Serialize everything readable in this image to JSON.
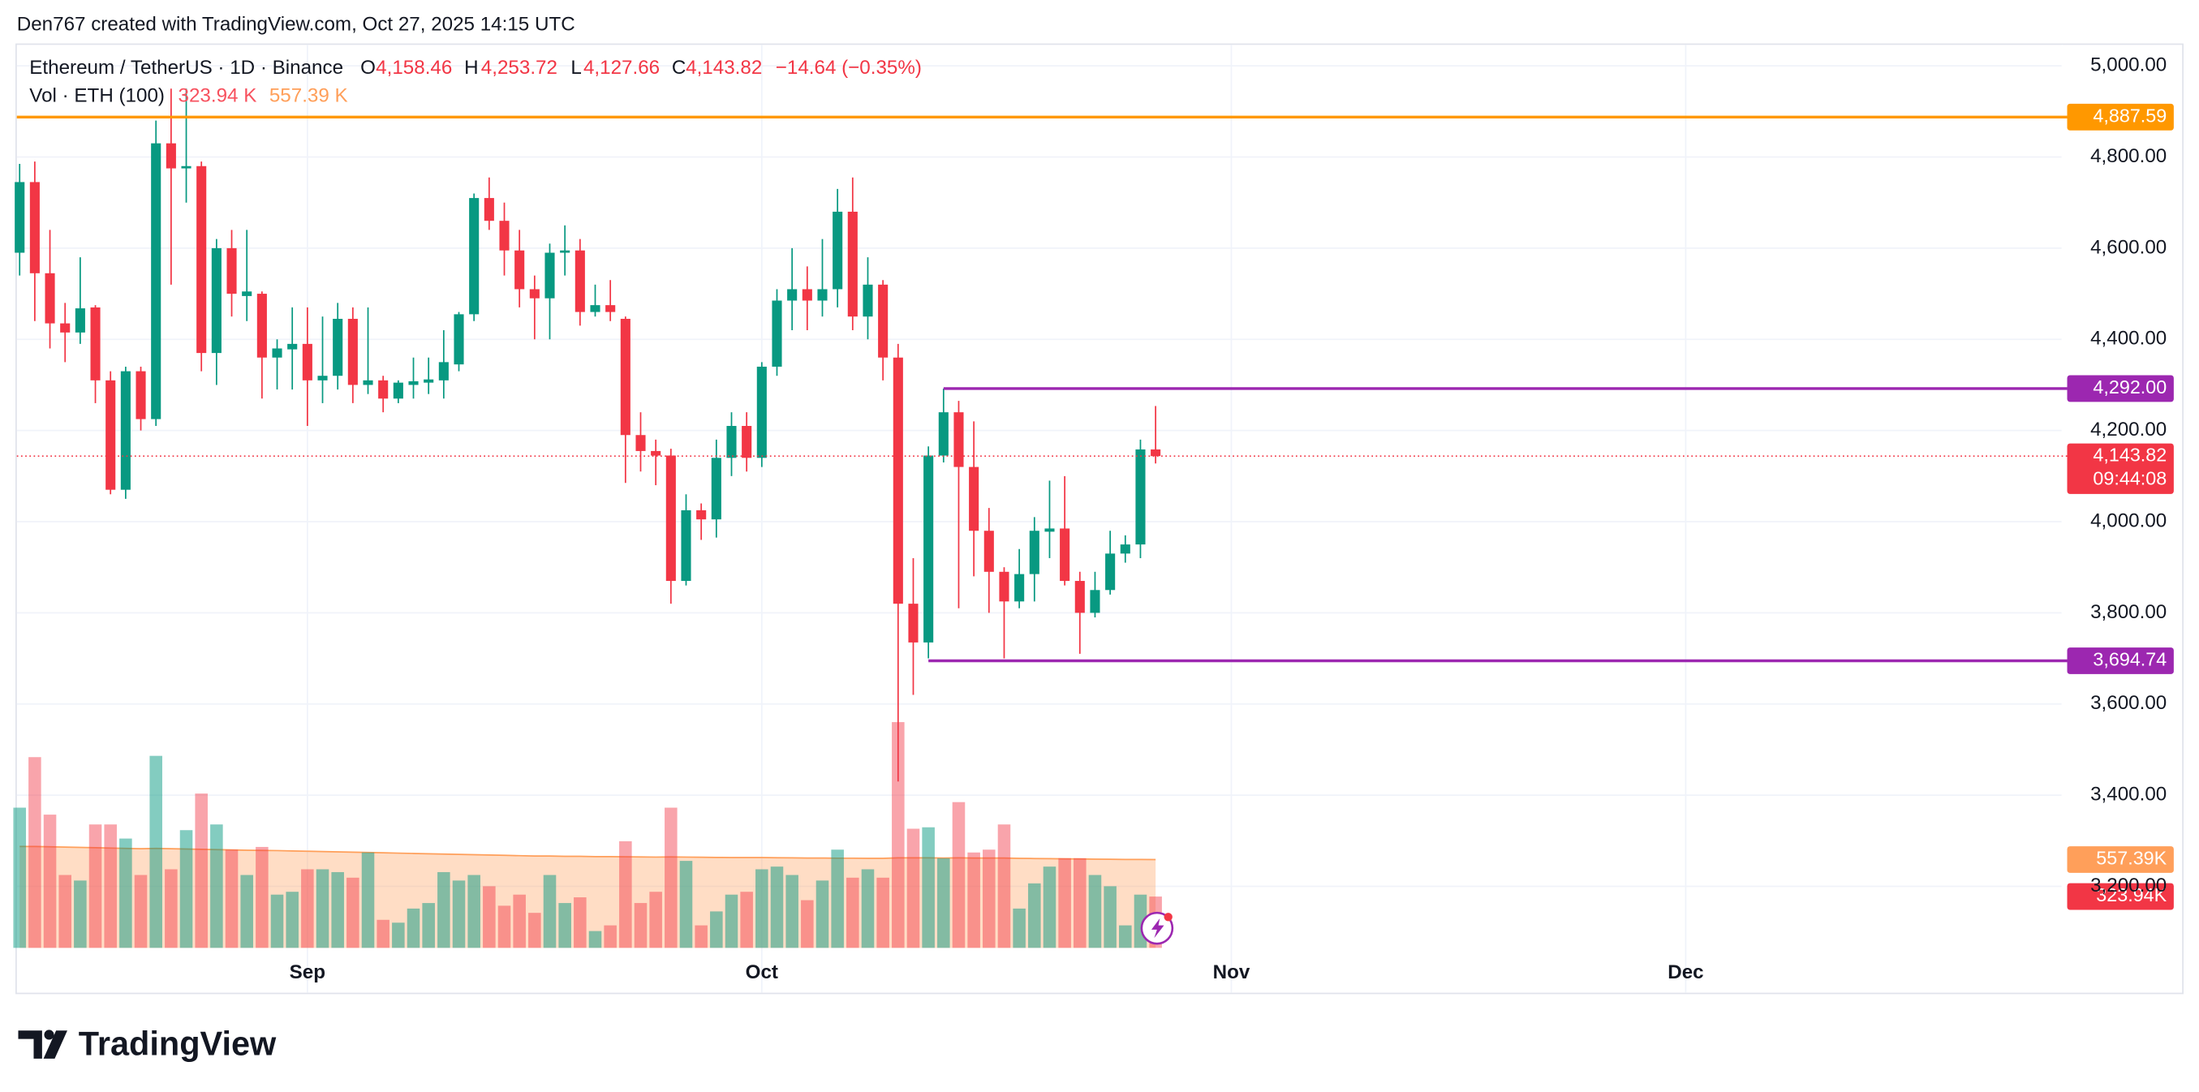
{
  "header": "Den767 created with TradingView.com, Oct 27, 2025 14:15 UTC",
  "brand": "TradingView",
  "chart_data": {
    "type": "candlestick",
    "legend": {
      "symbol": "Ethereum / TetherUS · 1D · Binance",
      "o": "O",
      "open": "4,158.46",
      "h": "H",
      "high": "4,253.72",
      "l": "L",
      "low": "4,127.66",
      "c": "C",
      "close": "4,143.82",
      "change": "−14.64 (−0.35%)",
      "vol": "Vol · ETH (100)",
      "vol_value": "323.94 K",
      "vol_ma": "557.39 K"
    },
    "categories": [
      null,
      null,
      null,
      null,
      null,
      null,
      null,
      null,
      null,
      null,
      null,
      null,
      null,
      null,
      null,
      null,
      null,
      null,
      null,
      "Sep",
      null,
      null,
      null,
      null,
      null,
      null,
      null,
      null,
      null,
      null,
      null,
      null,
      null,
      null,
      null,
      null,
      null,
      null,
      null,
      null,
      null,
      null,
      null,
      null,
      null,
      null,
      null,
      null,
      null,
      "Oct",
      null,
      null,
      null,
      null,
      null,
      null,
      null,
      null,
      null,
      null,
      null,
      null,
      null,
      null,
      null,
      null,
      null,
      null,
      null,
      null,
      null,
      null,
      null,
      null,
      null,
      null,
      null,
      null,
      null,
      null,
      "Nov",
      null,
      null,
      null,
      null,
      null,
      null,
      null,
      null,
      null,
      null,
      null,
      null,
      null,
      null,
      null,
      null,
      null,
      null,
      null,
      null,
      null,
      null,
      null,
      null,
      null,
      null,
      null,
      null,
      null,
      "Dec",
      null,
      null,
      null,
      null,
      null,
      null,
      null,
      null,
      null,
      null,
      null,
      null,
      null,
      null,
      null,
      null,
      null,
      null,
      null,
      null,
      null,
      null,
      null,
      null
    ],
    "open": [
      4590,
      4745,
      4545,
      4435,
      4415,
      4470,
      4310,
      4070,
      4330,
      4225,
      4830,
      4775,
      4780,
      4370,
      4600,
      4495,
      4500,
      4360,
      4378,
      4390,
      4310,
      4320,
      4445,
      4300,
      4310,
      4270,
      4300,
      4305,
      4310,
      4345,
      4455,
      4710,
      4660,
      4595,
      4510,
      4490,
      4590,
      4595,
      4460,
      4475,
      4445,
      4190,
      4155,
      4145,
      3870,
      4025,
      4005,
      4140,
      4210,
      4140,
      4340,
      4485,
      4510,
      4485,
      4510,
      4680,
      4450,
      4520,
      4360,
      3820,
      3735,
      4145,
      4240,
      4120,
      3980,
      3890,
      3825,
      3885,
      3978,
      3985,
      3870,
      3800,
      3850,
      3930,
      3950,
      4158.46,
      null,
      null,
      null,
      null,
      null,
      null,
      null,
      null,
      null,
      null,
      null,
      null,
      null,
      null,
      null,
      null,
      null,
      null,
      null,
      null,
      null,
      null,
      null,
      null,
      null,
      null,
      null,
      null,
      null,
      null,
      null,
      null,
      null,
      null,
      null,
      null,
      null,
      null,
      null,
      null,
      null,
      null,
      null,
      null,
      null,
      null,
      null,
      null,
      null,
      null,
      null,
      null,
      null,
      null,
      null,
      null,
      null,
      null,
      null
    ],
    "high": [
      4785,
      4790,
      4640,
      4480,
      4580,
      4475,
      4330,
      4340,
      4340,
      4880,
      4950,
      4950,
      4790,
      4620,
      4640,
      4640,
      4505,
      4400,
      4470,
      4470,
      4450,
      4480,
      4470,
      4470,
      4320,
      4310,
      4360,
      4360,
      4420,
      4460,
      4720,
      4755,
      4700,
      4640,
      4540,
      4610,
      4650,
      4620,
      4520,
      4530,
      4450,
      4240,
      4180,
      4160,
      4060,
      4040,
      4180,
      4240,
      4240,
      4350,
      4510,
      4600,
      4560,
      4620,
      4730,
      4755,
      4580,
      4530,
      4390,
      3920,
      4165,
      4292,
      4265,
      4220,
      4030,
      3900,
      3940,
      4010,
      4090,
      4100,
      3890,
      3890,
      3980,
      3970,
      4180,
      4253.72,
      null,
      null,
      null,
      null,
      null,
      null,
      null,
      null,
      null,
      null,
      null,
      null,
      null,
      null,
      null,
      null,
      null,
      null,
      null,
      null,
      null,
      null,
      null,
      null,
      null,
      null,
      null,
      null,
      null,
      null,
      null,
      null,
      null,
      null,
      null,
      null,
      null,
      null,
      null,
      null,
      null,
      null,
      null,
      null,
      null,
      null,
      null,
      null,
      null,
      null,
      null,
      null,
      null,
      null,
      null,
      null,
      null,
      null,
      null
    ],
    "low": [
      4540,
      4440,
      4380,
      4350,
      4390,
      4260,
      4060,
      4050,
      4200,
      4210,
      4520,
      4700,
      4330,
      4300,
      4450,
      4440,
      4270,
      4290,
      4290,
      4210,
      4260,
      4290,
      4260,
      4280,
      4240,
      4260,
      4270,
      4280,
      4270,
      4330,
      4440,
      4640,
      4540,
      4470,
      4400,
      4400,
      4540,
      4430,
      4450,
      4440,
      4085,
      4110,
      4080,
      3820,
      3860,
      3960,
      3965,
      4100,
      4110,
      4120,
      4320,
      4420,
      4420,
      4450,
      4470,
      4420,
      4400,
      4310,
      3430,
      3620,
      3700,
      4130,
      3810,
      3880,
      3800,
      3700,
      3810,
      3825,
      3920,
      3860,
      3710,
      3790,
      3840,
      3910,
      3920,
      4127.66,
      null,
      null,
      null,
      null,
      null,
      null,
      null,
      null,
      null,
      null,
      null,
      null,
      null,
      null,
      null,
      null,
      null,
      null,
      null,
      null,
      null,
      null,
      null,
      null,
      null,
      null,
      null,
      null,
      null,
      null,
      null,
      null,
      null,
      null,
      null,
      null,
      null,
      null,
      null,
      null,
      null,
      null,
      null,
      null,
      null,
      null,
      null,
      null,
      null,
      null,
      null,
      null,
      null,
      null,
      null,
      null,
      null,
      null,
      null
    ],
    "close": [
      4745,
      4545,
      4435,
      4415,
      4468,
      4310,
      4070,
      4330,
      4225,
      4830,
      4775,
      4780,
      4370,
      4600,
      4500,
      4505,
      4360,
      4380,
      4390,
      4310,
      4320,
      4445,
      4300,
      4310,
      4270,
      4305,
      4308,
      4312,
      4350,
      4455,
      4710,
      4660,
      4595,
      4510,
      4490,
      4590,
      4595,
      4460,
      4475,
      4460,
      4190,
      4155,
      4145,
      3870,
      4025,
      4005,
      4140,
      4210,
      4140,
      4340,
      4485,
      4510,
      4485,
      4510,
      4680,
      4450,
      4520,
      4360,
      3820,
      3735,
      4145,
      4240,
      4120,
      3980,
      3890,
      3825,
      3885,
      3980,
      3985,
      3870,
      3800,
      3850,
      3930,
      3950,
      4158.46,
      4143.82,
      null,
      null,
      null,
      null,
      null,
      null,
      null,
      null,
      null,
      null,
      null,
      null,
      null,
      null,
      null,
      null,
      null,
      null,
      null,
      null,
      null,
      null,
      null,
      null,
      null,
      null,
      null,
      null,
      null,
      null,
      null,
      null,
      null,
      null,
      null,
      null,
      null,
      null,
      null,
      null,
      null,
      null,
      null,
      null,
      null,
      null,
      null,
      null,
      null,
      null,
      null,
      null,
      null,
      null,
      null,
      null,
      null,
      null,
      null
    ],
    "volume": [
      885,
      1204,
      841,
      460,
      425,
      779,
      779,
      690,
      460,
      1212,
      496,
      743,
      974,
      779,
      620,
      460,
      637,
      336,
      354,
      496,
      496,
      478,
      443,
      602,
      177,
      159,
      248,
      283,
      478,
      425,
      460,
      389,
      266,
      336,
      221,
      460,
      283,
      319,
      106,
      142,
      673,
      283,
      354,
      885,
      549,
      142,
      230,
      336,
      354,
      496,
      513,
      460,
      301,
      425,
      620,
      443,
      496,
      443,
      1425,
      752,
      761,
      566,
      920,
      602,
      620,
      779,
      248,
      407,
      513,
      566,
      566,
      460,
      389,
      142,
      336,
      323.94,
      null,
      null,
      null,
      null,
      null,
      null,
      null,
      null,
      null,
      null,
      null,
      null,
      null,
      null,
      null,
      null,
      null,
      null,
      null,
      null,
      null,
      null,
      null,
      null,
      null,
      null,
      null,
      null,
      null,
      null,
      null,
      null,
      null,
      null,
      null,
      null,
      null,
      null,
      null,
      null,
      null,
      null,
      null,
      null,
      null,
      null,
      null,
      null,
      null,
      null,
      null,
      null,
      null,
      null,
      null,
      null,
      null,
      null,
      null
    ],
    "volume_ma": [
      640,
      640,
      638,
      636,
      634,
      632,
      630,
      628,
      626,
      628,
      626,
      624,
      622,
      620,
      618,
      616,
      615,
      614,
      612,
      610,
      608,
      606,
      604,
      602,
      600,
      598,
      596,
      594,
      592,
      590,
      588,
      586,
      584,
      582,
      580,
      580,
      578,
      578,
      576,
      576,
      575,
      574,
      573,
      574,
      573,
      572,
      571,
      570,
      570,
      570,
      569,
      568,
      567,
      567,
      566,
      566,
      565,
      565,
      568,
      568,
      568,
      567,
      568,
      567,
      567,
      567,
      565,
      564,
      563,
      562,
      561,
      560,
      559,
      558,
      558,
      557.39,
      null,
      null,
      null,
      null,
      null,
      null,
      null,
      null,
      null,
      null,
      null,
      null,
      null,
      null,
      null,
      null,
      null,
      null,
      null,
      null,
      null,
      null,
      null,
      null,
      null,
      null,
      null,
      null,
      null,
      null,
      null,
      null,
      null,
      null,
      null,
      null,
      null,
      null,
      null,
      null,
      null,
      null,
      null,
      null,
      null,
      null,
      null,
      null,
      null,
      null,
      null,
      null,
      null,
      null,
      null,
      null,
      null,
      null,
      null
    ],
    "up_color": "#089981",
    "down_color": "#f23645",
    "volume_up_color": "rgba(8,153,129,0.5)",
    "volume_down_color": "rgba(242,54,69,0.45)",
    "volume_ma_color": "#ff9f5a",
    "ylim": [
      3065,
      5046
    ],
    "volume_ylim": [
      0,
      5700
    ],
    "yticks": [
      {
        "value": 3200,
        "label": "3,200.00"
      },
      {
        "value": 3400,
        "label": "3,400.00"
      },
      {
        "value": 3600,
        "label": "3,600.00"
      },
      {
        "value": 3800,
        "label": "3,800.00"
      },
      {
        "value": 4000,
        "label": "4,000.00"
      },
      {
        "value": 4200,
        "label": "4,200.00"
      },
      {
        "value": 4400,
        "label": "4,400.00"
      },
      {
        "value": 4600,
        "label": "4,600.00"
      },
      {
        "value": 4800,
        "label": "4,800.00"
      },
      {
        "value": 5000,
        "label": "5,000.00"
      }
    ],
    "grid": true,
    "levels": [
      {
        "value": 4887.59,
        "label": "4,887.59",
        "color": "#ff9800"
      },
      {
        "value": 4292.0,
        "label": "4,292.00",
        "color": "#9c27b0"
      },
      {
        "value": 3694.74,
        "label": "3,694.74",
        "color": "#9c27b0"
      }
    ],
    "last_price": {
      "value": 4143.82,
      "label": "4,143.82",
      "countdown": "09:44:08",
      "color": "#f23645"
    },
    "volume_ma_tag": {
      "value": 557.39,
      "label": "557.39K",
      "color": "#ff9f5a"
    },
    "volume_tag": {
      "value": 323.94,
      "label": "323.94K",
      "color": "#f23645"
    }
  }
}
